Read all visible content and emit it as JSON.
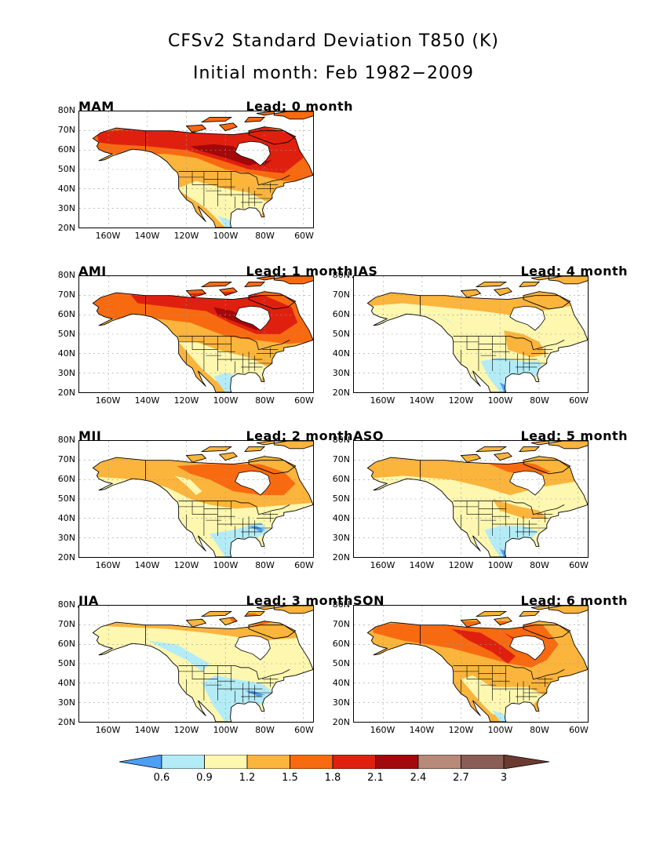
{
  "title": "CFSv2 Standard Deviation T850 (K)",
  "subtitle": "Initial month: Feb 1982−2009",
  "lat_labels": [
    "80N",
    "70N",
    "60N",
    "50N",
    "40N",
    "30N",
    "20N"
  ],
  "lon_labels": [
    "160W",
    "140W",
    "120W",
    "100W",
    "80W",
    "60W"
  ],
  "panels": [
    {
      "season": "MAM",
      "lead": "Lead: 0 month",
      "pattern": "strong"
    },
    {
      "season": "AMJ",
      "lead": "Lead: 1 month",
      "pattern": "strong2"
    },
    {
      "season": "JAS",
      "lead": "Lead: 4 month",
      "pattern": "weak"
    },
    {
      "season": "MJJ",
      "lead": "Lead: 2 month",
      "pattern": "medium"
    },
    {
      "season": "ASO",
      "lead": "Lead: 5 month",
      "pattern": "weakmed"
    },
    {
      "season": "JJA",
      "lead": "Lead: 3 month",
      "pattern": "weakest"
    },
    {
      "season": "SON",
      "lead": "Lead: 6 month",
      "pattern": "autumn"
    }
  ],
  "colorbar": {
    "levels": [
      "0.6",
      "0.9",
      "1.2",
      "1.5",
      "1.8",
      "2.1",
      "2.4",
      "2.7",
      "3"
    ],
    "colors": [
      "#4d9ff5",
      "#b3ecf6",
      "#fdf7b0",
      "#fbb43c",
      "#f86a10",
      "#e0200f",
      "#a3080b",
      "#b88878",
      "#8a5e54",
      "#6a3a30"
    ]
  }
}
